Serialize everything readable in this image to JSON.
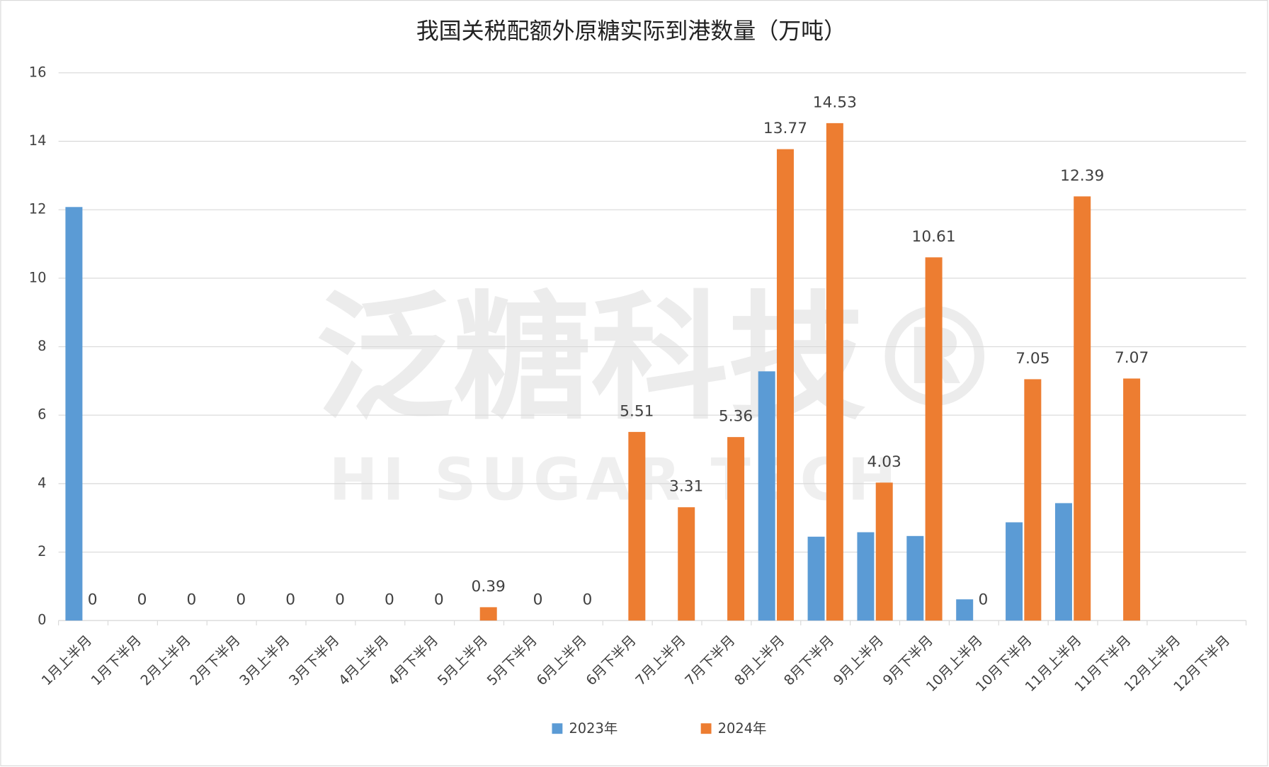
{
  "chart_data": {
    "type": "bar",
    "title": "我国关税配额外原糖实际到港数量（万吨）",
    "watermark": [
      "泛糖科技®",
      "HI SUGAR TECH"
    ],
    "categories": [
      "1月上半月",
      "1月下半月",
      "2月上半月",
      "2月下半月",
      "3月上半月",
      "3月下半月",
      "4月上半月",
      "4月下半月",
      "5月上半月",
      "5月下半月",
      "6月上半月",
      "6月下半月",
      "7月上半月",
      "7月下半月",
      "8月上半月",
      "8月下半月",
      "9月上半月",
      "9月下半月",
      "10月上半月",
      "10月下半月",
      "11月上半月",
      "11月下半月",
      "12月上半月",
      "12月下半月"
    ],
    "series": [
      {
        "name": "2023年",
        "color": "#5b9bd5",
        "data_labels": false,
        "values": [
          12.08,
          null,
          null,
          null,
          null,
          null,
          null,
          null,
          null,
          null,
          null,
          null,
          null,
          null,
          7.28,
          2.45,
          2.58,
          2.47,
          0.62,
          2.87,
          3.43,
          null,
          null,
          null
        ]
      },
      {
        "name": "2024年",
        "color": "#ed7d31",
        "data_labels": true,
        "values": [
          0,
          0,
          0,
          0,
          0,
          0,
          0,
          0,
          0.39,
          0,
          0,
          5.51,
          3.31,
          5.36,
          13.77,
          14.53,
          4.03,
          10.61,
          0,
          7.05,
          12.39,
          7.07,
          null,
          null
        ]
      }
    ],
    "ylim": [
      0,
      16
    ],
    "yticks": [
      0,
      2,
      4,
      6,
      8,
      10,
      12,
      14,
      16
    ],
    "grid": true,
    "legend": "bottom"
  }
}
